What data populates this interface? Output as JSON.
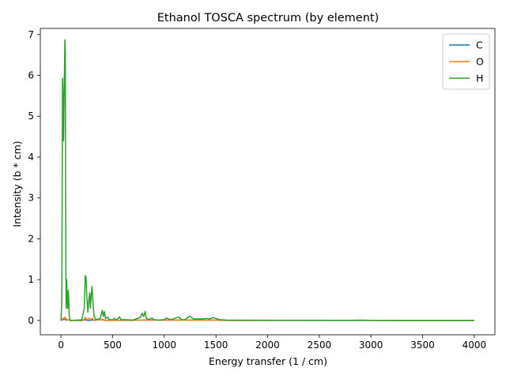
{
  "chart_data": {
    "type": "line",
    "title": "Ethanol TOSCA spectrum (by element)",
    "xlabel": "Energy transfer (1 / cm)",
    "ylabel": "Intensity (b * cm)",
    "xlim": [
      -200,
      4200
    ],
    "ylim": [
      -0.35,
      7.15
    ],
    "xticks": [
      0,
      500,
      1000,
      1500,
      2000,
      2500,
      3000,
      3500,
      4000
    ],
    "yticks": [
      0,
      1,
      2,
      3,
      4,
      5,
      6,
      7
    ],
    "grid": false,
    "legend_position": "top-right",
    "series": [
      {
        "name": "C",
        "color": "#1f77b4",
        "points": [
          [
            0,
            0
          ],
          [
            10,
            0.01
          ],
          [
            20,
            0.03
          ],
          [
            30,
            0.02
          ],
          [
            40,
            0.05
          ],
          [
            50,
            0.01
          ],
          [
            70,
            0.02
          ],
          [
            90,
            0
          ],
          [
            230,
            0.02
          ],
          [
            260,
            0
          ],
          [
            300,
            0.01
          ],
          [
            400,
            0.02
          ],
          [
            420,
            0.01
          ],
          [
            600,
            0
          ],
          [
            800,
            0.01
          ],
          [
            1000,
            0.01
          ],
          [
            1200,
            0.01
          ],
          [
            1400,
            0.01
          ],
          [
            1500,
            0.01
          ],
          [
            1600,
            0
          ],
          [
            4000,
            0
          ]
        ]
      },
      {
        "name": "O",
        "color": "#ff7f0e",
        "points": [
          [
            0,
            0
          ],
          [
            10,
            0.02
          ],
          [
            20,
            0.06
          ],
          [
            30,
            0.04
          ],
          [
            40,
            0.08
          ],
          [
            50,
            0.03
          ],
          [
            60,
            0.02
          ],
          [
            80,
            0.01
          ],
          [
            100,
            0
          ],
          [
            220,
            0
          ],
          [
            235,
            0.08
          ],
          [
            250,
            0.02
          ],
          [
            270,
            0.05
          ],
          [
            290,
            0.02
          ],
          [
            300,
            0.06
          ],
          [
            320,
            0
          ],
          [
            400,
            0.03
          ],
          [
            420,
            0
          ],
          [
            800,
            0.01
          ],
          [
            1000,
            0.01
          ],
          [
            1200,
            0.01
          ],
          [
            1500,
            0.01
          ],
          [
            1600,
            0
          ],
          [
            2900,
            0.005
          ],
          [
            3000,
            0
          ],
          [
            4000,
            0
          ]
        ]
      },
      {
        "name": "H",
        "color": "#2ca02c",
        "points": [
          [
            0,
            0
          ],
          [
            8,
            0.5
          ],
          [
            15,
            5.93
          ],
          [
            20,
            5.5
          ],
          [
            25,
            4.4
          ],
          [
            32,
            5.8
          ],
          [
            38,
            6.87
          ],
          [
            42,
            6.6
          ],
          [
            46,
            2.0
          ],
          [
            50,
            0.3
          ],
          [
            55,
            1.0
          ],
          [
            60,
            0.6
          ],
          [
            65,
            0.3
          ],
          [
            72,
            0.73
          ],
          [
            80,
            0.1
          ],
          [
            90,
            0
          ],
          [
            200,
            0
          ],
          [
            225,
            0.3
          ],
          [
            235,
            1.1
          ],
          [
            242,
            1.05
          ],
          [
            250,
            0.6
          ],
          [
            260,
            0.2
          ],
          [
            270,
            0.5
          ],
          [
            278,
            0.68
          ],
          [
            285,
            0.3
          ],
          [
            292,
            0.6
          ],
          [
            300,
            0.83
          ],
          [
            308,
            0.5
          ],
          [
            320,
            0.1
          ],
          [
            340,
            0.02
          ],
          [
            380,
            0.05
          ],
          [
            400,
            0.25
          ],
          [
            410,
            0.1
          ],
          [
            420,
            0.22
          ],
          [
            430,
            0.05
          ],
          [
            450,
            0.08
          ],
          [
            470,
            0.02
          ],
          [
            500,
            0.02
          ],
          [
            520,
            0.05
          ],
          [
            540,
            0.01
          ],
          [
            565,
            0.09
          ],
          [
            580,
            0.02
          ],
          [
            620,
            0.02
          ],
          [
            700,
            0.01
          ],
          [
            770,
            0.08
          ],
          [
            785,
            0.18
          ],
          [
            800,
            0.1
          ],
          [
            815,
            0.22
          ],
          [
            825,
            0.05
          ],
          [
            850,
            0.02
          ],
          [
            880,
            0.06
          ],
          [
            900,
            0.02
          ],
          [
            950,
            0.01
          ],
          [
            1000,
            0.02
          ],
          [
            1020,
            0.06
          ],
          [
            1050,
            0.03
          ],
          [
            1080,
            0.03
          ],
          [
            1110,
            0.06
          ],
          [
            1140,
            0.08
          ],
          [
            1170,
            0.02
          ],
          [
            1200,
            0.02
          ],
          [
            1230,
            0.08
          ],
          [
            1250,
            0.1
          ],
          [
            1280,
            0.04
          ],
          [
            1330,
            0.04
          ],
          [
            1380,
            0.04
          ],
          [
            1410,
            0.05
          ],
          [
            1440,
            0.04
          ],
          [
            1470,
            0.07
          ],
          [
            1500,
            0.05
          ],
          [
            1530,
            0.02
          ],
          [
            1600,
            0.01
          ],
          [
            2000,
            0.005
          ],
          [
            2800,
            0.003
          ],
          [
            2930,
            0.008
          ],
          [
            3000,
            0.002
          ],
          [
            4000,
            0
          ]
        ]
      }
    ]
  }
}
